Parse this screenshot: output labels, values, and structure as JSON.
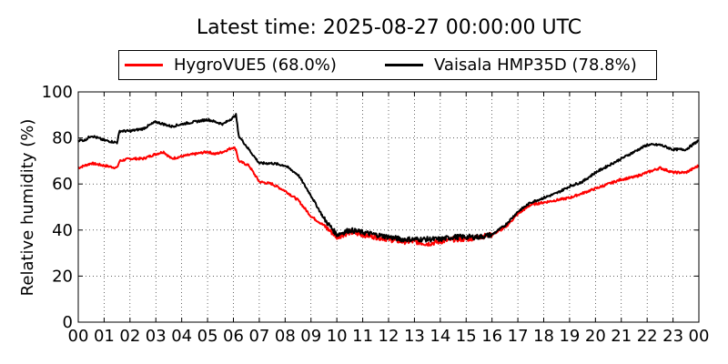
{
  "chart_data": {
    "type": "line",
    "title": "Latest time: 2025-08-27 00:00:00 UTC",
    "xlabel": "",
    "ylabel": "Relative humidity (%)",
    "xlim": [
      0,
      24
    ],
    "ylim": [
      0,
      100
    ],
    "x_ticks": [
      "00",
      "01",
      "02",
      "03",
      "04",
      "05",
      "06",
      "07",
      "08",
      "09",
      "10",
      "11",
      "12",
      "13",
      "14",
      "15",
      "16",
      "17",
      "18",
      "19",
      "20",
      "21",
      "22",
      "23",
      "00"
    ],
    "y_ticks": [
      0,
      20,
      40,
      60,
      80,
      100
    ],
    "grid": true,
    "grid_style": "dotted",
    "legend_position": "top",
    "x": [
      0,
      0.25,
      0.5,
      1,
      1.5,
      1.6,
      2,
      2.5,
      3,
      3.3,
      3.6,
      4,
      4.5,
      5,
      5.3,
      5.6,
      6,
      6.1,
      6.2,
      6.4,
      6.6,
      7,
      7.5,
      8,
      8.5,
      9,
      9.5,
      10,
      10.5,
      11,
      11.5,
      12,
      12.5,
      13,
      13.5,
      14,
      14.5,
      15,
      15.5,
      16,
      16.5,
      17,
      17.5,
      18,
      18.5,
      19,
      19.5,
      20,
      20.5,
      21,
      21.5,
      22,
      22.5,
      23,
      23.5,
      24
    ],
    "series": [
      {
        "name": "HygroVUE5 (68.0%)",
        "color": "#ff0000",
        "values": [
          67,
          68,
          69,
          68,
          67,
          70,
          71,
          71,
          73,
          74,
          71,
          72,
          73,
          74,
          73,
          74,
          76,
          75,
          70,
          69,
          68,
          61,
          60,
          57,
          53,
          46,
          42,
          37,
          39,
          38,
          37,
          36,
          35,
          35,
          34,
          35,
          36,
          36,
          37,
          38,
          41,
          47,
          51,
          52,
          53,
          54,
          56,
          58,
          60,
          62,
          63,
          65,
          67,
          65,
          65,
          68
        ]
      },
      {
        "name": "Vaisala HMP35D (78.8%)",
        "color": "#000000",
        "values": [
          79,
          79,
          81,
          79,
          78,
          83,
          83,
          84,
          87,
          86,
          85,
          86,
          87,
          88,
          87,
          86,
          89,
          90,
          81,
          78,
          75,
          69,
          69,
          68,
          64,
          55,
          45,
          38,
          40,
          39,
          38,
          37,
          36,
          36,
          36,
          36,
          37,
          37,
          37,
          38,
          42,
          48,
          52,
          54,
          56,
          59,
          61,
          65,
          68,
          71,
          74,
          77,
          77,
          75,
          75,
          79
        ]
      }
    ]
  }
}
